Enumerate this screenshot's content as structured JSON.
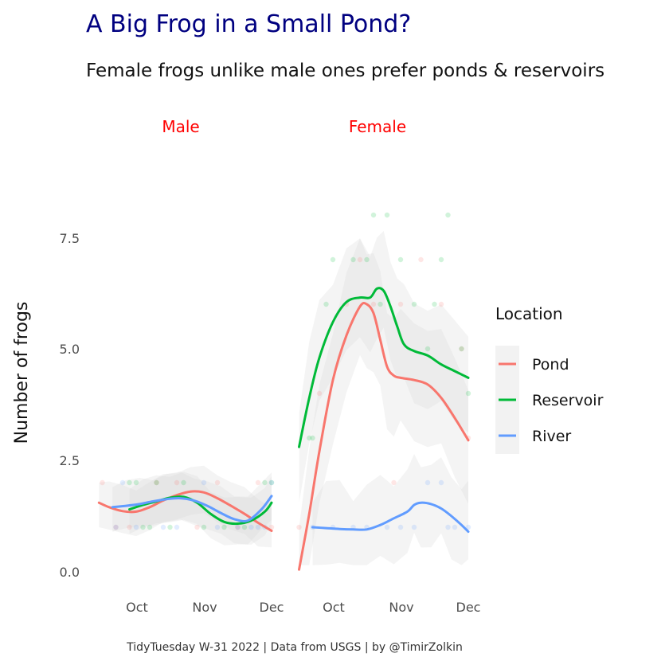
{
  "chart_data": {
    "type": "line",
    "title": "A Big Frog in a Small Pond?",
    "subtitle": "Female frogs unlike male ones prefer ponds & reservoirs",
    "ylabel": "Number of frogs",
    "xlabel": "",
    "caption": "TidyTuesday W-31 2022 | Data from USGS | by @TimirZolkin",
    "ylim": [
      0,
      8.6
    ],
    "yticks": [
      "0.0",
      "2.5",
      "5.0",
      "7.5"
    ],
    "ytick_values": [
      0,
      2.5,
      5,
      7.5
    ],
    "xticks": [
      "Oct",
      "Nov",
      "Dec"
    ],
    "xtick_values": [
      1,
      2,
      3
    ],
    "xlim": [
      0.45,
      3.1
    ],
    "legend": {
      "title": "Location",
      "position": "right"
    },
    "colors": {
      "Pond": "#F8766D",
      "Reservoir": "#00BA38",
      "River": "#619CFF",
      "title": "#000080",
      "strip": "#FF0000"
    },
    "panels": [
      {
        "label": "Male",
        "series": [
          {
            "name": "Pond",
            "x": [
              0.45,
              0.6,
              0.8,
              1.0,
              1.2,
              1.4,
              1.6,
              1.8,
              2.0,
              2.2,
              2.4,
              2.6,
              2.8,
              3.0
            ],
            "values": [
              1.55,
              1.45,
              1.36,
              1.35,
              1.45,
              1.6,
              1.72,
              1.8,
              1.78,
              1.65,
              1.48,
              1.3,
              1.1,
              0.92
            ]
          },
          {
            "name": "Reservoir",
            "x": [
              0.9,
              1.1,
              1.3,
              1.5,
              1.7,
              1.9,
              2.1,
              2.3,
              2.5,
              2.7,
              2.9,
              3.0
            ],
            "values": [
              1.4,
              1.5,
              1.58,
              1.66,
              1.68,
              1.55,
              1.3,
              1.12,
              1.08,
              1.15,
              1.35,
              1.55
            ]
          },
          {
            "name": "River",
            "x": [
              0.65,
              0.85,
              1.05,
              1.25,
              1.45,
              1.65,
              1.85,
              2.05,
              2.25,
              2.45,
              2.65,
              2.85,
              3.0
            ],
            "values": [
              1.45,
              1.48,
              1.52,
              1.58,
              1.63,
              1.65,
              1.6,
              1.48,
              1.32,
              1.18,
              1.15,
              1.4,
              1.7
            ]
          }
        ],
        "points": [
          {
            "series": "Pond",
            "x": [
              0.5,
              0.7,
              0.9,
              1.3,
              1.6,
              1.9,
              2.2,
              2.5,
              2.8,
              3.0
            ],
            "values": [
              2,
              1,
              1,
              2,
              2,
              1,
              2,
              1,
              2,
              1
            ]
          },
          {
            "series": "Reservoir",
            "x": [
              0.9,
              1.0,
              1.1,
              1.2,
              1.3,
              1.5,
              1.7,
              2.0,
              2.3,
              2.6,
              2.9,
              3.0
            ],
            "values": [
              2,
              2,
              1,
              1,
              2,
              1,
              2,
              1,
              1,
              1,
              2,
              2
            ]
          },
          {
            "series": "River",
            "x": [
              0.7,
              0.8,
              1.0,
              1.4,
              1.6,
              2.0,
              2.2,
              2.5,
              2.7,
              2.8,
              2.9,
              3.0
            ],
            "values": [
              1,
              2,
              1,
              1,
              1,
              2,
              1,
              1,
              1,
              1,
              1,
              2
            ]
          }
        ]
      },
      {
        "label": "Female",
        "series": [
          {
            "name": "Pond",
            "x": [
              0.5,
              0.65,
              0.8,
              1.0,
              1.2,
              1.4,
              1.5,
              1.6,
              1.7,
              1.8,
              1.9,
              2.0,
              2.2,
              2.4,
              2.6,
              2.8,
              3.0
            ],
            "values": [
              0.05,
              1.3,
              2.7,
              4.3,
              5.3,
              5.95,
              6.0,
              5.8,
              5.2,
              4.6,
              4.4,
              4.35,
              4.3,
              4.2,
              3.9,
              3.45,
              2.95
            ]
          },
          {
            "name": "Reservoir",
            "x": [
              0.5,
              0.65,
              0.8,
              1.0,
              1.2,
              1.4,
              1.55,
              1.65,
              1.75,
              1.85,
              1.95,
              2.05,
              2.2,
              2.4,
              2.6,
              2.8,
              3.0
            ],
            "values": [
              2.8,
              3.9,
              4.8,
              5.6,
              6.05,
              6.15,
              6.15,
              6.35,
              6.3,
              5.95,
              5.5,
              5.1,
              4.95,
              4.85,
              4.65,
              4.5,
              4.35
            ]
          },
          {
            "name": "River",
            "x": [
              0.7,
              0.9,
              1.1,
              1.3,
              1.5,
              1.7,
              1.9,
              2.1,
              2.2,
              2.3,
              2.45,
              2.6,
              2.75,
              2.9,
              3.0
            ],
            "values": [
              1.0,
              0.98,
              0.96,
              0.95,
              0.95,
              1.05,
              1.2,
              1.35,
              1.5,
              1.55,
              1.52,
              1.42,
              1.25,
              1.05,
              0.9
            ]
          }
        ],
        "points": [
          {
            "series": "Pond",
            "x": [
              0.5,
              0.8,
              1.2,
              1.4,
              1.6,
              1.9,
              2.0,
              2.3,
              2.6,
              2.9,
              3.0
            ],
            "values": [
              1,
              4,
              6,
              7,
              6,
              2,
              6,
              7,
              6,
              5,
              3
            ]
          },
          {
            "series": "Reservoir",
            "x": [
              0.65,
              0.7,
              0.9,
              1.0,
              1.3,
              1.5,
              1.6,
              1.7,
              1.8,
              2.0,
              2.2,
              2.4,
              2.5,
              2.6,
              2.7,
              2.9,
              3.0
            ],
            "values": [
              3,
              3,
              6,
              7,
              7,
              7,
              8,
              6,
              8,
              7,
              6,
              5,
              6,
              7,
              8,
              5,
              4
            ]
          },
          {
            "series": "River",
            "x": [
              0.7,
              1.0,
              1.3,
              1.5,
              1.8,
              2.0,
              2.2,
              2.4,
              2.6,
              2.7,
              2.8,
              3.0
            ],
            "values": [
              1,
              1,
              1,
              1,
              1,
              1,
              1,
              2,
              2,
              1,
              1,
              1
            ]
          }
        ]
      }
    ]
  }
}
